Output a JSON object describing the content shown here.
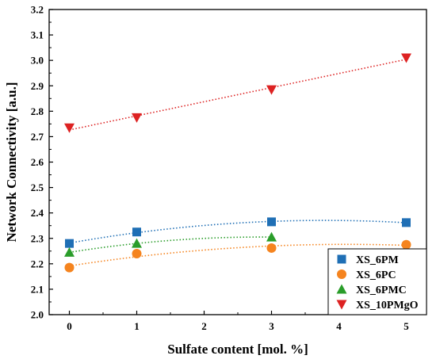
{
  "chart_data": {
    "type": "scatter",
    "xlabel": "Sulfate content [mol. %]",
    "ylabel": "Network Connectivity [a.u.]",
    "xlim": [
      -0.3,
      5.3
    ],
    "ylim": [
      2.0,
      3.2
    ],
    "xticks": [
      "0",
      "1",
      "2",
      "3",
      "4",
      "5"
    ],
    "yticks": [
      "2.0",
      "2.1",
      "2.2",
      "2.3",
      "2.4",
      "2.5",
      "2.6",
      "2.7",
      "2.8",
      "2.9",
      "3.0",
      "3.1",
      "3.2"
    ],
    "grid": false,
    "legend_position": "bottom-right",
    "series": [
      {
        "name": "XS_6PM",
        "marker": "square",
        "color": "#1f6fb5",
        "x": [
          0,
          1,
          3,
          5
        ],
        "y": [
          2.28,
          2.325,
          2.365,
          2.362
        ],
        "fit": "quadratic"
      },
      {
        "name": "XS_6PC",
        "marker": "circle",
        "color": "#f5841f",
        "x": [
          0,
          1,
          3,
          5
        ],
        "y": [
          2.185,
          2.24,
          2.262,
          2.275
        ],
        "fit": "quadratic"
      },
      {
        "name": "XS_6PMC",
        "marker": "triangle-up",
        "color": "#2a9d2a",
        "x": [
          0,
          1,
          3
        ],
        "y": [
          2.245,
          2.28,
          2.305
        ],
        "fit": "quadratic"
      },
      {
        "name": "XS_10PMgO",
        "marker": "triangle-down",
        "color": "#dd2222",
        "x": [
          0,
          1,
          3,
          5
        ],
        "y": [
          2.735,
          2.775,
          2.885,
          3.01
        ],
        "fit": "linear"
      }
    ]
  }
}
